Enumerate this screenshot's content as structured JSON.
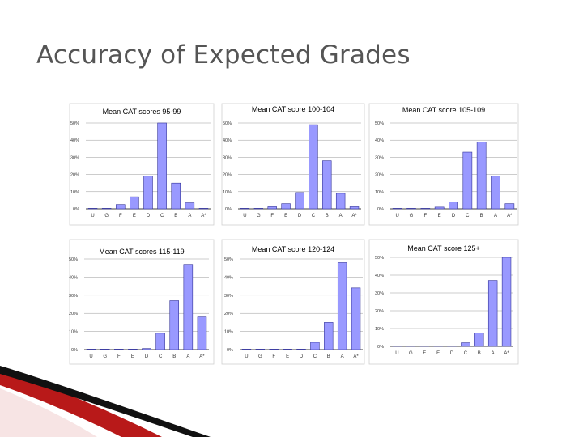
{
  "slide": {
    "title": "Accuracy of Expected Grades",
    "accent_color": "#b00000",
    "bar_color": "#9999ff",
    "bar_stroke": "#333399"
  },
  "chart_data": [
    {
      "type": "bar",
      "title": "Mean CAT scores 95-99",
      "categories": [
        "U",
        "G",
        "F",
        "E",
        "D",
        "C",
        "B",
        "A",
        "A*"
      ],
      "values": [
        0.3,
        0.3,
        2.5,
        7,
        19,
        50,
        15,
        3.5,
        0.3
      ],
      "ylim": [
        0,
        50
      ],
      "yticks": [
        "0%",
        "10%",
        "20%",
        "30%",
        "40%",
        "50%"
      ],
      "xlabel": "",
      "ylabel": ""
    },
    {
      "type": "bar",
      "title": "Mean CAT score 100-104",
      "categories": [
        "U",
        "G",
        "F",
        "E",
        "D",
        "C",
        "B",
        "A",
        "A*"
      ],
      "values": [
        0.3,
        0.3,
        1.2,
        3,
        9.5,
        49,
        28,
        9,
        1.2
      ],
      "ylim": [
        0,
        50
      ],
      "yticks": [
        "0%",
        "10%",
        "20%",
        "30%",
        "40%",
        "50%"
      ],
      "xlabel": "",
      "ylabel": ""
    },
    {
      "type": "bar",
      "title": "Mean CAT score 105-109",
      "categories": [
        "U",
        "G",
        "F",
        "E",
        "D",
        "C",
        "B",
        "A",
        "A*"
      ],
      "values": [
        0.2,
        0.2,
        0.2,
        1,
        4,
        33,
        39,
        19,
        3
      ],
      "ylim": [
        0,
        50
      ],
      "yticks": [
        "0%",
        "10%",
        "20%",
        "30%",
        "40%",
        "50%"
      ],
      "xlabel": "",
      "ylabel": ""
    },
    {
      "type": "bar",
      "title": "Mean CAT scores 115-119",
      "categories": [
        "U",
        "G",
        "F",
        "E",
        "D",
        "C",
        "B",
        "A",
        "A*"
      ],
      "values": [
        0.3,
        0.3,
        0.3,
        0.3,
        0.6,
        9,
        27,
        47,
        18
      ],
      "ylim": [
        0,
        50
      ],
      "yticks": [
        "0%",
        "10%",
        "20%",
        "30%",
        "40%",
        "50%"
      ],
      "xlabel": "",
      "ylabel": ""
    },
    {
      "type": "bar",
      "title": "Mean CAT score 120-124",
      "categories": [
        "U",
        "G",
        "F",
        "E",
        "D",
        "C",
        "B",
        "A",
        "A*"
      ],
      "values": [
        0.3,
        0.3,
        0.3,
        0.3,
        0.3,
        4,
        15,
        48,
        34
      ],
      "ylim": [
        0,
        50
      ],
      "yticks": [
        "0%",
        "10%",
        "20%",
        "30%",
        "40%",
        "50%"
      ],
      "xlabel": "",
      "ylabel": ""
    },
    {
      "type": "bar",
      "title": "Mean CAT score 125+",
      "categories": [
        "U",
        "G",
        "F",
        "E",
        "D",
        "C",
        "B",
        "A",
        "A*"
      ],
      "values": [
        0.2,
        0.2,
        0.2,
        0.2,
        0.2,
        2,
        7.5,
        37,
        50
      ],
      "ylim": [
        0,
        50
      ],
      "yticks": [
        "0%",
        "10%",
        "20%",
        "30%",
        "40%",
        "50%"
      ],
      "xlabel": "",
      "ylabel": ""
    }
  ]
}
